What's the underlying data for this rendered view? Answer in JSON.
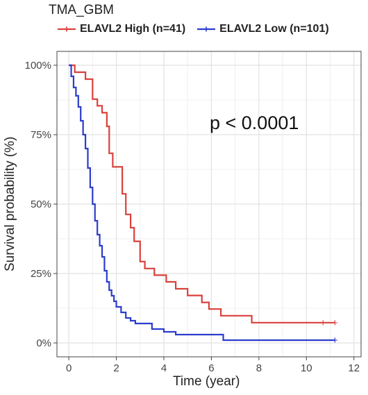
{
  "chart_data": {
    "type": "line",
    "subtype": "kaplan-meier step curve",
    "title": "",
    "legend_title": "TMA_GBM",
    "legend_position": "top",
    "xlabel": "Time (year)",
    "ylabel": "Survival probability (%)",
    "xlim": [
      -0.5,
      12.3
    ],
    "ylim": [
      -0.05,
      1.05
    ],
    "x_ticks": [
      0,
      2,
      4,
      6,
      8,
      10,
      12
    ],
    "x_tick_labels": [
      "0",
      "2",
      "4",
      "6",
      "8",
      "10",
      "12"
    ],
    "y_ticks": [
      0,
      0.25,
      0.5,
      0.75,
      1.0
    ],
    "y_tick_labels": [
      "0%",
      "25%",
      "50%",
      "75%",
      "100%"
    ],
    "grid": true,
    "annotation": "p < 0.0001",
    "series": [
      {
        "name": "ELAVL2 High (n=41)",
        "color": "#d9413b",
        "x": [
          0,
          0.25,
          0.7,
          1.0,
          1.2,
          1.4,
          1.6,
          1.7,
          1.85,
          2.0,
          2.25,
          2.4,
          2.6,
          2.75,
          3.0,
          3.2,
          3.6,
          4.1,
          4.5,
          5.0,
          5.6,
          5.9,
          6.4,
          7.7,
          11.2
        ],
        "y": [
          1.0,
          0.975,
          0.95,
          0.878,
          0.854,
          0.829,
          0.78,
          0.683,
          0.634,
          0.634,
          0.537,
          0.463,
          0.415,
          0.366,
          0.293,
          0.268,
          0.244,
          0.22,
          0.195,
          0.171,
          0.146,
          0.122,
          0.098,
          0.073,
          0.073
        ],
        "censor_x": [
          10.7,
          11.2
        ],
        "censor_y": [
          0.073,
          0.073
        ]
      },
      {
        "name": "ELAVL2 Low (n=101)",
        "color": "#2b3ccc",
        "x": [
          0,
          0.1,
          0.2,
          0.3,
          0.4,
          0.5,
          0.6,
          0.7,
          0.8,
          0.9,
          1.0,
          1.1,
          1.2,
          1.3,
          1.4,
          1.5,
          1.6,
          1.7,
          1.8,
          1.9,
          2.0,
          2.2,
          2.4,
          2.6,
          2.8,
          3.0,
          3.5,
          4.0,
          4.5,
          5.0,
          6.5,
          11.2
        ],
        "y": [
          1.0,
          0.96,
          0.92,
          0.89,
          0.85,
          0.8,
          0.75,
          0.7,
          0.63,
          0.56,
          0.5,
          0.44,
          0.39,
          0.35,
          0.31,
          0.26,
          0.22,
          0.19,
          0.17,
          0.15,
          0.13,
          0.11,
          0.09,
          0.08,
          0.07,
          0.07,
          0.05,
          0.04,
          0.03,
          0.03,
          0.01,
          0.01
        ],
        "censor_x": [
          11.2
        ],
        "censor_y": [
          0.01
        ]
      }
    ]
  }
}
